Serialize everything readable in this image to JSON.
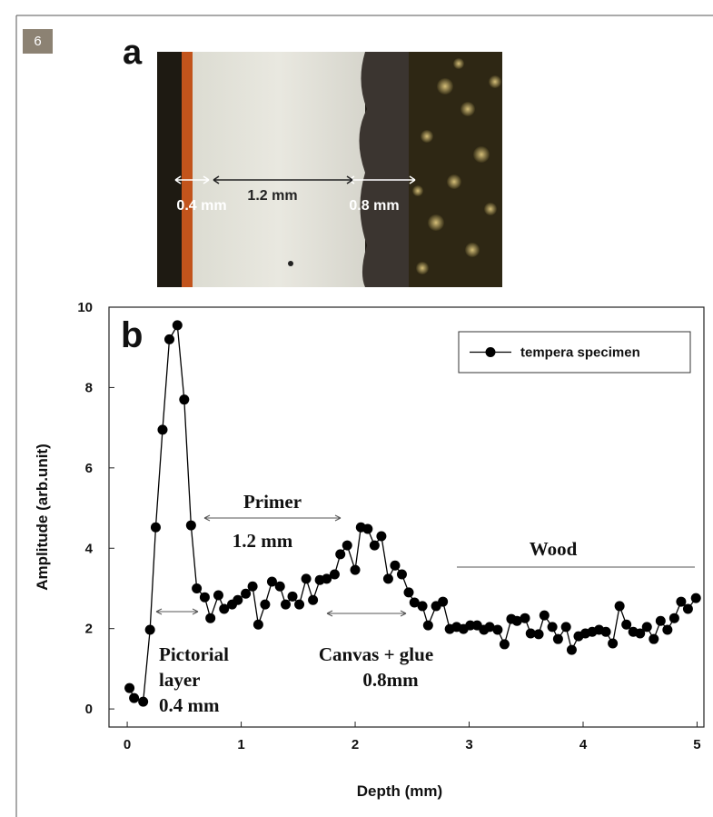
{
  "figure_number": "6",
  "panel_a": {
    "label": "a",
    "annotations": [
      "0.4 mm",
      "1.2 mm",
      "0.8 mm"
    ]
  },
  "chart_data": {
    "type": "line",
    "panel_label": "b",
    "xlabel": "Depth (mm)",
    "ylabel": "Amplitude (arb.unit)",
    "x": [
      0.02,
      0.06,
      0.14,
      0.2,
      0.25,
      0.31,
      0.37,
      0.44,
      0.5,
      0.56,
      0.61,
      0.68,
      0.73,
      0.8,
      0.85,
      0.92,
      0.97,
      1.04,
      1.1,
      1.15,
      1.21,
      1.27,
      1.34,
      1.39,
      1.45,
      1.51,
      1.57,
      1.63,
      1.69,
      1.75,
      1.82,
      1.87,
      1.93,
      2.0,
      2.05,
      2.11,
      2.17,
      2.23,
      2.29,
      2.35,
      2.41,
      2.47,
      2.52,
      2.59,
      2.64,
      2.71,
      2.77,
      2.83,
      2.89,
      2.95,
      3.01,
      3.07,
      3.13,
      3.18,
      3.25,
      3.31,
      3.37,
      3.42,
      3.49,
      3.54,
      3.61,
      3.66,
      3.73,
      3.78,
      3.85,
      3.9,
      3.96,
      4.02,
      4.08,
      4.14,
      4.2,
      4.26,
      4.32,
      4.38,
      4.44,
      4.5,
      4.56,
      4.62,
      4.68,
      4.74,
      4.8,
      4.86,
      4.92,
      4.99
    ],
    "series": [
      {
        "name": "tempera specimen",
        "color": "#000000",
        "values": [
          0.52,
          0.27,
          0.18,
          1.97,
          4.52,
          6.95,
          9.2,
          9.55,
          7.7,
          4.57,
          3.0,
          2.78,
          2.26,
          2.83,
          2.49,
          2.6,
          2.71,
          2.87,
          3.05,
          2.1,
          2.6,
          3.17,
          3.05,
          2.6,
          2.8,
          2.6,
          3.24,
          2.71,
          3.21,
          3.24,
          3.35,
          3.85,
          4.07,
          3.46,
          4.52,
          4.48,
          4.07,
          4.3,
          3.24,
          3.57,
          3.35,
          2.9,
          2.65,
          2.56,
          2.08,
          2.56,
          2.67,
          1.99,
          2.04,
          1.99,
          2.08,
          2.08,
          1.97,
          2.04,
          1.97,
          1.61,
          2.24,
          2.19,
          2.26,
          1.88,
          1.86,
          2.33,
          2.04,
          1.74,
          2.04,
          1.47,
          1.81,
          1.88,
          1.92,
          1.97,
          1.92,
          1.63,
          2.56,
          2.1,
          1.92,
          1.88,
          2.04,
          1.74,
          2.19,
          1.97,
          2.26,
          2.67,
          2.49,
          2.76
        ]
      }
    ],
    "xlim": [
      -0.16,
      5.06
    ],
    "ylim": [
      -0.45,
      10
    ],
    "xticks": [
      0,
      1,
      2,
      3,
      4,
      5
    ],
    "yticks": [
      0,
      2,
      4,
      6,
      8,
      10
    ],
    "legend_position": "upper right",
    "annotations": [
      "Primer",
      "1.2 mm",
      "Wood",
      "Pictorial",
      "layer",
      "0.4 mm",
      "Canvas + glue",
      "0.8mm"
    ]
  }
}
